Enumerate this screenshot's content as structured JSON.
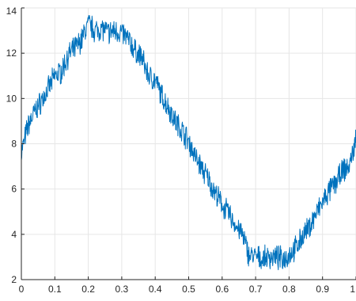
{
  "chart_data": {
    "type": "line",
    "title": "",
    "xlabel": "",
    "ylabel": "",
    "xlim": [
      0,
      1
    ],
    "ylim": [
      2,
      14
    ],
    "xticks": [
      0,
      0.1,
      0.2,
      0.3,
      0.4,
      0.5,
      0.6,
      0.7,
      0.8,
      0.9,
      1
    ],
    "xtick_labels": [
      "0",
      "0.1",
      "0.2",
      "0.3",
      "0.4",
      "0.5",
      "0.6",
      "0.7",
      "0.8",
      "0.9",
      "1"
    ],
    "yticks": [
      2,
      4,
      6,
      8,
      10,
      12,
      14
    ],
    "ytick_labels": [
      "2",
      "4",
      "6",
      "8",
      "10",
      "12",
      "14"
    ],
    "grid": true,
    "series": [
      {
        "color": "#0072BD",
        "x": [
          0,
          0.02,
          0.04,
          0.06,
          0.08,
          0.1,
          0.12,
          0.14,
          0.16,
          0.18,
          0.2,
          0.22,
          0.24,
          0.26,
          0.28,
          0.3,
          0.32,
          0.34,
          0.36,
          0.38,
          0.4,
          0.42,
          0.44,
          0.46,
          0.48,
          0.5,
          0.52,
          0.54,
          0.56,
          0.58,
          0.6,
          0.62,
          0.64,
          0.66,
          0.68,
          0.7,
          0.72,
          0.74,
          0.76,
          0.78,
          0.8,
          0.82,
          0.84,
          0.86,
          0.88,
          0.9,
          0.92,
          0.94,
          0.96,
          0.98,
          1.0
        ],
        "y": [
          7.6,
          8.8,
          9.4,
          9.9,
          10.4,
          11.0,
          11.2,
          11.9,
          12.2,
          12.6,
          13.3,
          13.0,
          13.1,
          12.9,
          13.0,
          12.9,
          12.6,
          12.1,
          11.8,
          11.0,
          10.8,
          10.1,
          9.6,
          9.0,
          8.6,
          8.1,
          7.4,
          6.9,
          6.4,
          5.8,
          5.3,
          4.9,
          4.4,
          4.0,
          3.1,
          3.0,
          2.9,
          3.0,
          3.0,
          2.9,
          3.1,
          3.4,
          3.9,
          4.3,
          4.9,
          5.4,
          5.9,
          6.3,
          6.8,
          7.0,
          8.2
        ]
      }
    ]
  }
}
